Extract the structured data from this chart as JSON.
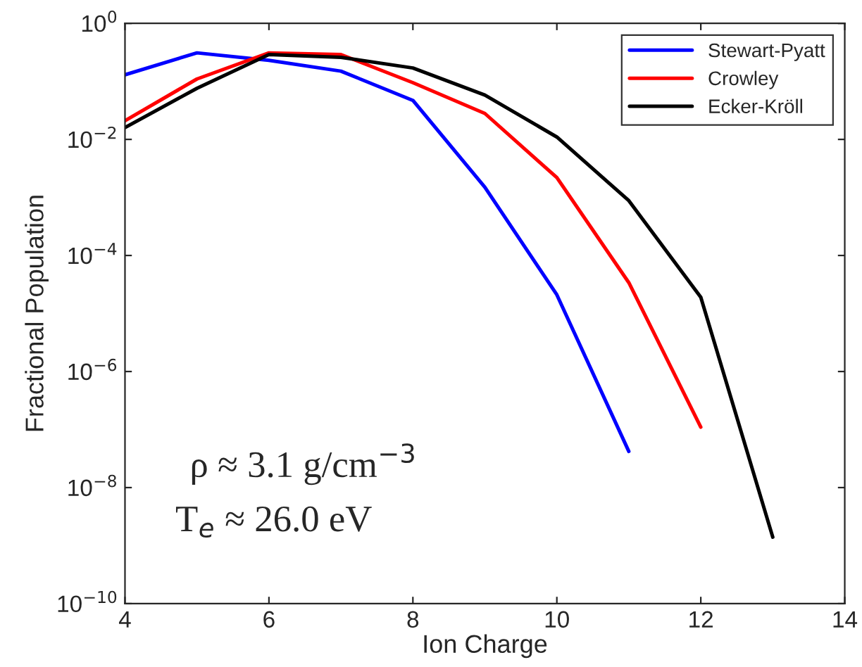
{
  "chart_data": {
    "type": "line",
    "xlabel": "Ion Charge",
    "ylabel": "Fractional Population",
    "log": "y",
    "xlim": [
      4,
      14
    ],
    "xticks": [
      4,
      6,
      8,
      10,
      12,
      14
    ],
    "ylim": [
      1e-10,
      1
    ],
    "yticks": [
      {
        "value": 1e-10,
        "label": "10$^{−10}$"
      },
      {
        "value": 1e-08,
        "label": "10$^{−8}$"
      },
      {
        "value": 1e-06,
        "label": "10$^{−6}$"
      },
      {
        "value": 0.0001,
        "label": "10$^{−4}$"
      },
      {
        "value": 0.01,
        "label": "10$^{−2}$"
      },
      {
        "value": 1,
        "label": "10$^{0}$"
      }
    ],
    "series": [
      {
        "name": "Stewart-Pyatt",
        "color": "#0000ff",
        "x": [
          4,
          5,
          6,
          7,
          8,
          9,
          10,
          11
        ],
        "values": [
          0.13,
          0.31,
          0.23,
          0.15,
          0.047,
          0.0015,
          2.1e-05,
          4.2e-08
        ]
      },
      {
        "name": "Crowley",
        "color": "#ff0000",
        "x": [
          4,
          5,
          6,
          7,
          8,
          9,
          10,
          11,
          12
        ],
        "values": [
          0.021,
          0.11,
          0.31,
          0.29,
          0.095,
          0.028,
          0.0022,
          3.4e-05,
          1.1e-07
        ]
      },
      {
        "name": "Ecker-Kröll",
        "color": "#000000",
        "x": [
          4,
          5,
          6,
          7,
          8,
          9,
          10,
          11,
          12,
          13
        ],
        "values": [
          0.016,
          0.076,
          0.29,
          0.26,
          0.17,
          0.058,
          0.011,
          0.00088,
          1.9e-05,
          1.4e-09
        ]
      }
    ],
    "annotations": [
      "ρ ≈ 3.1 g/cm$^{−3}$",
      "T$_{e}$ ≈ 26.0 eV"
    ],
    "legend": "top right",
    "grid": false,
    "marker": "none",
    "line_style": "solid"
  }
}
